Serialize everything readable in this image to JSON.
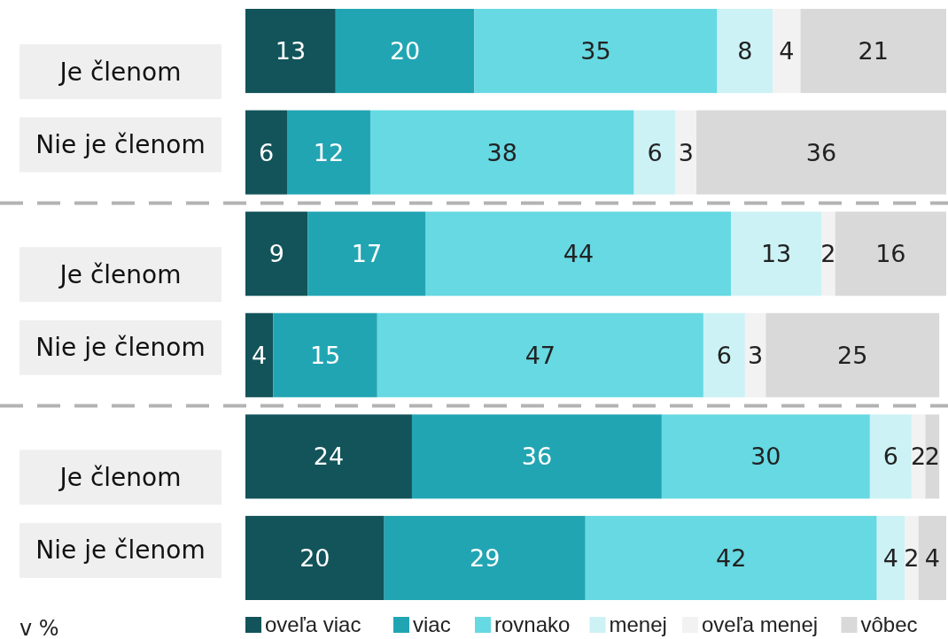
{
  "chart_data": {
    "type": "bar",
    "orientation": "horizontal",
    "stacked": true,
    "data_labels": true,
    "legend": "bottom",
    "tick_labels": "y",
    "grid": false,
    "xlim": [
      0,
      101
    ],
    "categories": [
      "Je členom",
      "Nie je členom",
      "Je členom",
      "Nie je členom",
      "Je členom",
      "Nie je členom"
    ],
    "series": [
      {
        "name": "oveľa viac",
        "color": "#12545a",
        "values": [
          13,
          6,
          9,
          4,
          24,
          20
        ]
      },
      {
        "name": "viac",
        "color": "#22a5b3",
        "values": [
          20,
          12,
          17,
          15,
          36,
          29
        ]
      },
      {
        "name": "rovnako",
        "color": "#66d9e3",
        "values": [
          35,
          38,
          44,
          47,
          30,
          42
        ]
      },
      {
        "name": "menej",
        "color": "#ccf2f5",
        "values": [
          8,
          6,
          13,
          6,
          6,
          4
        ]
      },
      {
        "name": "oveľa menej",
        "color": "#f2f2f2",
        "values": [
          4,
          3,
          2,
          3,
          2,
          2
        ]
      },
      {
        "name": "vôbec",
        "color": "#d9d9d9",
        "values": [
          21,
          36,
          16,
          25,
          2,
          4
        ]
      }
    ],
    "annotations": [
      "v %"
    ]
  }
}
